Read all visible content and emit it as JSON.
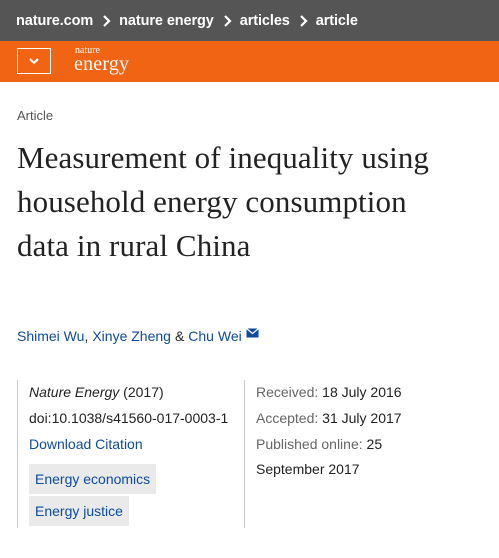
{
  "breadcrumb": {
    "items": [
      "nature.com",
      "nature energy",
      "articles",
      "article"
    ]
  },
  "header": {
    "logo_top": "nature",
    "logo_bottom": "energy",
    "menu_icon": "chevron-down-icon",
    "brand_color": "#f06414",
    "breadcrumb_bg": "#555555"
  },
  "article": {
    "type": "Article",
    "title": "Measurement of inequality using household energy consumption data in rural China",
    "authors": [
      "Shimei Wu",
      "Xinye Zheng",
      "Chu Wei"
    ],
    "author_separators": [
      ",",
      "&"
    ],
    "journal": "Nature Energy",
    "year": "(2017)",
    "doi": "doi:10.1038/s41560-017-0003-1",
    "download_citation": "Download Citation",
    "subjects": [
      "Energy economics",
      "Energy justice"
    ],
    "dates": {
      "received_label": "Received:",
      "received": "18 July 2016",
      "accepted_label": "Accepted:",
      "accepted": "31 July 2017",
      "published_label": "Published online:",
      "published_day": "25",
      "published_rest": "September 2017"
    }
  },
  "colors": {
    "link": "#0d4b9c",
    "tag_bg": "#eaeaea"
  }
}
